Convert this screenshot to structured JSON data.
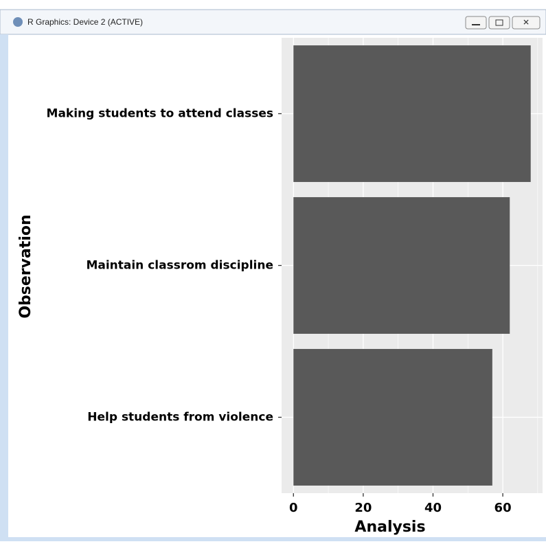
{
  "window": {
    "title": "R Graphics: Device 2 (ACTIVE)"
  },
  "chart_data": {
    "type": "barh",
    "categories": [
      "Making students to attend classes",
      "Maintain classrom discipline",
      "Help students from violence"
    ],
    "values": [
      68,
      62,
      57
    ],
    "color": "#595959",
    "xlabel": "Analysis",
    "ylabel": "Observation",
    "xlim": [
      -3.4,
      71.4
    ],
    "xticks": [
      0,
      20,
      40,
      60
    ],
    "minor_xticks": [
      10,
      30,
      50,
      70
    ],
    "grid": true,
    "panel_color": "#ebebeb"
  }
}
